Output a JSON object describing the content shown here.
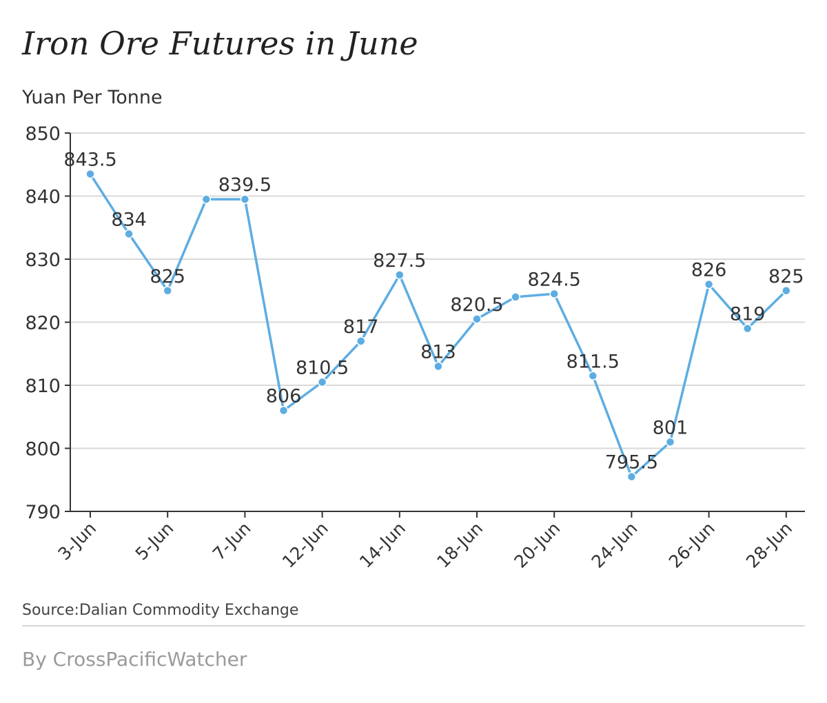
{
  "title": "Iron Ore Futures in June",
  "subtitle": "Yuan Per Tonne",
  "source": "Source:Dalian Commodity Exchange",
  "byline": "By CrossPacificWatcher",
  "colors": {
    "line": "#5dade2",
    "grid": "#d9d9d9",
    "axis": "#333333",
    "text": "#333333"
  },
  "chart_data": {
    "type": "line",
    "title": "Iron Ore Futures in June",
    "ylabel": "Yuan Per Tonne",
    "ylim": [
      790,
      850
    ],
    "yticks": [
      790,
      800,
      810,
      820,
      830,
      840,
      850
    ],
    "grid": true,
    "x_tick_labels": [
      "3-Jun",
      "5-Jun",
      "7-Jun",
      "12-Jun",
      "14-Jun",
      "18-Jun",
      "20-Jun",
      "24-Jun",
      "26-Jun",
      "28-Jun"
    ],
    "x_tick_positions": [
      0,
      2,
      4,
      6,
      8,
      10,
      12,
      14,
      16,
      18
    ],
    "values": [
      843.5,
      834,
      825,
      839.5,
      839.5,
      806,
      810.5,
      817,
      827.5,
      813,
      820.5,
      824,
      824.5,
      811.5,
      795.5,
      801,
      826,
      819,
      825
    ],
    "point_labels": [
      "843.5",
      "834",
      "825",
      "",
      "839.5",
      "806",
      "810.5",
      "817",
      "827.5",
      "813",
      "820.5",
      "",
      "824.5",
      "811.5",
      "795.5",
      "801",
      "826",
      "819",
      "825"
    ]
  }
}
